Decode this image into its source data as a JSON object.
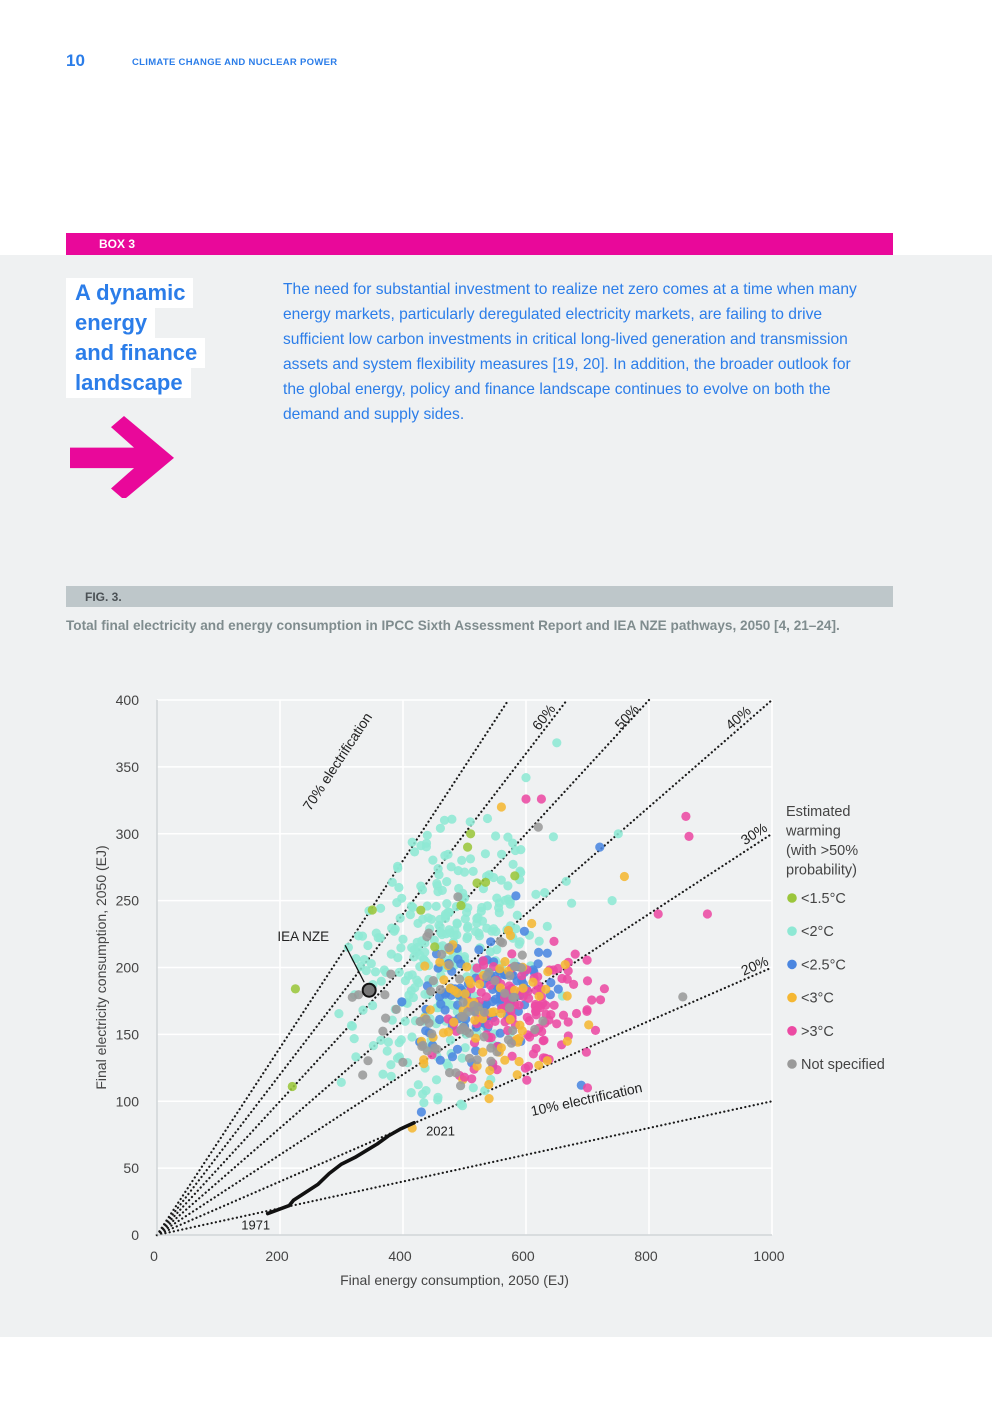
{
  "header": {
    "page_number": "10",
    "running_title": "CLIMATE CHANGE AND NUCLEAR POWER"
  },
  "box": {
    "label": "BOX 3",
    "title_lines": [
      "A dynamic",
      "energy",
      "and finance",
      "landscape"
    ],
    "text": "The need for substantial investment to realize net zero comes at a time when many energy markets, particularly deregulated electricity markets, are failing to drive sufficient low carbon investments in critical long-lived generation and transmission assets and system flexibility measures [19, 20]. In addition, the broader outlook for the global energy, policy and finance landscape continues to evolve on both the demand and supply sides.",
    "arrow_icon": "right-arrow-icon",
    "accent_color": "#e9089a",
    "text_color": "#2b7de9"
  },
  "figure": {
    "label": "FIG. 3.",
    "caption": "Total final electricity and energy consumption in IPCC Sixth Assessment Report and IEA NZE pathways, 2050 [4, 21–24]."
  },
  "chart_data": {
    "type": "scatter",
    "xlabel": "Final energy consumption, 2050 (EJ)",
    "ylabel": "Final electricity consumption, 2050 (EJ)",
    "xlim": [
      0,
      1000
    ],
    "ylim": [
      0,
      400
    ],
    "xticks": [
      0,
      200,
      400,
      600,
      800,
      1000
    ],
    "yticks": [
      0,
      50,
      100,
      150,
      200,
      250,
      300,
      350,
      400
    ],
    "grid": true,
    "legend_title": "Estimated warming (with >50% probability)",
    "legend_placement": "right",
    "series": [
      {
        "name": "<1.5°C",
        "color": "#9bc63b"
      },
      {
        "name": "<2°C",
        "color": "#8ee8d4"
      },
      {
        "name": "<2.5°C",
        "color": "#4b86e0"
      },
      {
        "name": "<3°C",
        "color": "#f5b733"
      },
      {
        "name": ">3°C",
        "color": "#ec4aa3"
      },
      {
        "name": "Not specified",
        "color": "#9a9a9a"
      }
    ],
    "reference_lines": [
      {
        "label": "70% electrification",
        "share": 0.7
      },
      {
        "label": "60%",
        "share": 0.6
      },
      {
        "label": "50%",
        "share": 0.5
      },
      {
        "label": "40%",
        "share": 0.4
      },
      {
        "label": "30%",
        "share": 0.3
      },
      {
        "label": "20%",
        "share": 0.2
      },
      {
        "label": "10% electrification",
        "share": 0.1
      }
    ],
    "historical": {
      "start_label": "1971",
      "end_label": "2021",
      "path": [
        [
          180,
          16
        ],
        [
          215,
          22
        ],
        [
          222,
          26
        ],
        [
          242,
          32
        ],
        [
          262,
          38
        ],
        [
          280,
          46
        ],
        [
          300,
          53
        ],
        [
          322,
          58
        ],
        [
          340,
          63
        ],
        [
          358,
          68
        ],
        [
          376,
          74
        ],
        [
          395,
          79
        ],
        [
          418,
          84
        ]
      ]
    },
    "iea_nze": {
      "label": "IEA NZE",
      "x": 345,
      "y": 183
    }
  }
}
